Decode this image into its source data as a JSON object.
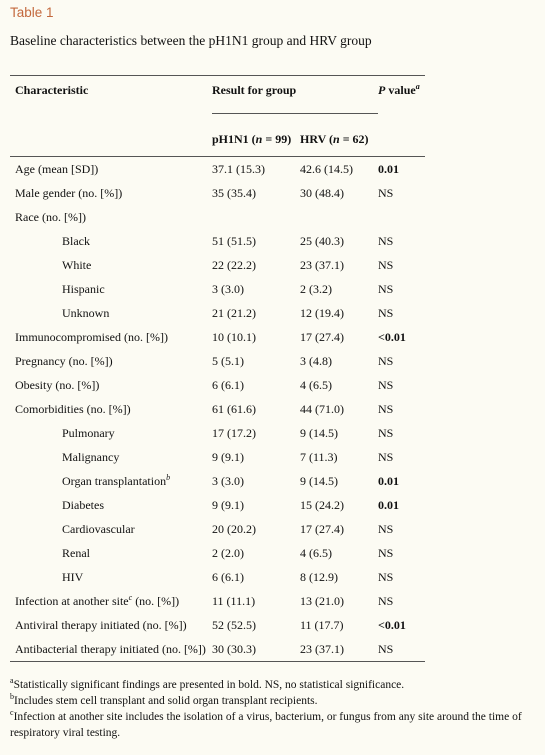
{
  "label": "Table 1",
  "caption": "Baseline characteristics between the pH1N1 group and HRV group",
  "header": {
    "characteristic": "Characteristic",
    "result_group": "Result for group",
    "p_value": {
      "italic": "P",
      "text": " value",
      "sup": "a"
    },
    "group1": {
      "pre": "pH1N1 (",
      "italic": "n",
      "post": " = 99)"
    },
    "group2": {
      "pre": "HRV (",
      "italic": "n",
      "post": " = 62)"
    }
  },
  "rows": [
    {
      "label": "Age (mean [SD])",
      "group1": "37.1 (15.3)",
      "group2": "42.6 (14.5)",
      "p": "0.01",
      "bold": true
    },
    {
      "label": "Male gender (no. [%])",
      "group1": "35 (35.4)",
      "group2": "30 (48.4)",
      "p": "NS"
    },
    {
      "label": "Race (no. [%])"
    },
    {
      "label": "Black",
      "indent": true,
      "group1": "51 (51.5)",
      "group2": "25 (40.3)",
      "p": "NS"
    },
    {
      "label": "White",
      "indent": true,
      "group1": "22 (22.2)",
      "group2": "23 (37.1)",
      "p": "NS"
    },
    {
      "label": "Hispanic",
      "indent": true,
      "group1": "3 (3.0)",
      "group2": "2 (3.2)",
      "p": "NS"
    },
    {
      "label": "Unknown",
      "indent": true,
      "group1": "21 (21.2)",
      "group2": "12 (19.4)",
      "p": "NS"
    },
    {
      "label": "Immunocompromised (no. [%])",
      "group1": "10 (10.1)",
      "group2": "17 (27.4)",
      "p": "<0.01",
      "bold": true
    },
    {
      "label": "Pregnancy (no. [%])",
      "group1": "5 (5.1)",
      "group2": "3 (4.8)",
      "p": "NS"
    },
    {
      "label": "Obesity (no. [%])",
      "group1": "6 (6.1)",
      "group2": "4 (6.5)",
      "p": "NS"
    },
    {
      "label": "Comorbidities (no. [%])",
      "group1": "61 (61.6)",
      "group2": "44 (71.0)",
      "p": "NS"
    },
    {
      "label": "Pulmonary",
      "indent": true,
      "group1": "17 (17.2)",
      "group2": "9 (14.5)",
      "p": "NS"
    },
    {
      "label": "Malignancy",
      "indent": true,
      "group1": "9 (9.1)",
      "group2": "7 (11.3)",
      "p": "NS"
    },
    {
      "label": "Organ transplantation",
      "sup": "b",
      "indent": true,
      "group1": "3 (3.0)",
      "group2": "9 (14.5)",
      "p": "0.01",
      "bold": true
    },
    {
      "label": "Diabetes",
      "indent": true,
      "group1": "9 (9.1)",
      "group2": "15 (24.2)",
      "p": "0.01",
      "bold": true
    },
    {
      "label": "Cardiovascular",
      "indent": true,
      "group1": "20 (20.2)",
      "group2": "17 (27.4)",
      "p": "NS"
    },
    {
      "label": "Renal",
      "indent": true,
      "group1": "2 (2.0)",
      "group2": "4 (6.5)",
      "p": "NS"
    },
    {
      "label": "HIV",
      "indent": true,
      "group1": "6 (6.1)",
      "group2": "8 (12.9)",
      "p": "NS"
    },
    {
      "label": "Infection at another site",
      "sup": "c",
      "label_rest": " (no. [%])",
      "group1": "11 (11.1)",
      "group2": "13 (21.0)",
      "p": "NS"
    },
    {
      "label": "Antiviral therapy initiated (no. [%])",
      "group1": "52 (52.5)",
      "group2": "11 (17.7)",
      "p": "<0.01",
      "bold": true
    },
    {
      "label": "Antibacterial therapy initiated (no. [%])",
      "group1": "30 (30.3)",
      "group2": "23 (37.1)",
      "p": "NS"
    }
  ],
  "footnotes": [
    {
      "mark": "a",
      "text": "Statistically significant findings are presented in bold. NS, no statistical significance."
    },
    {
      "mark": "b",
      "text": "Includes stem cell transplant and solid organ transplant recipients."
    },
    {
      "mark": "c",
      "text": "Infection at another site includes the isolation of a virus, bacterium, or fungus from any site around the time of respiratory viral testing."
    }
  ]
}
